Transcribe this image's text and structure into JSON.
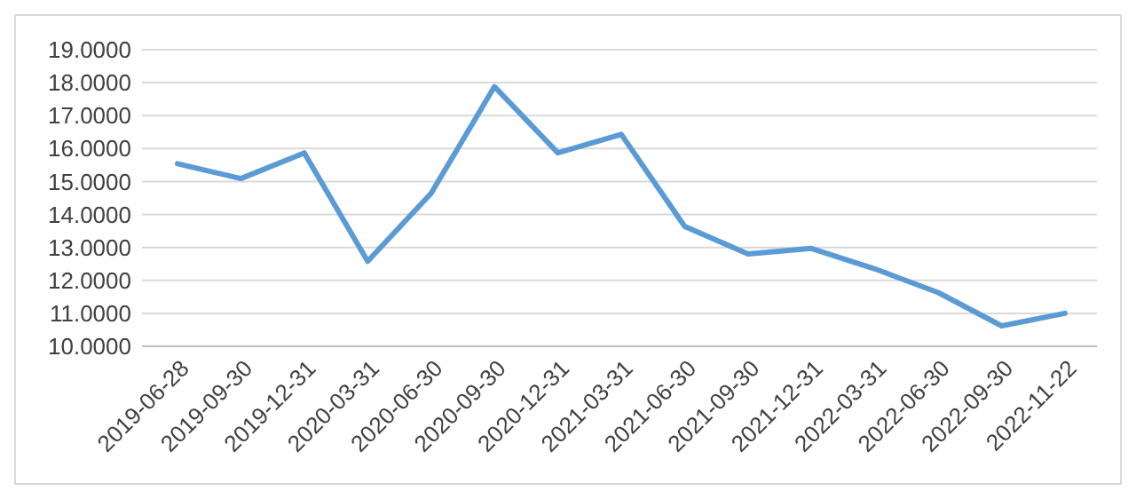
{
  "chart_data": {
    "type": "line",
    "categories": [
      "2019-06-28",
      "2019-09-30",
      "2019-12-31",
      "2020-03-31",
      "2020-06-30",
      "2020-09-30",
      "2020-12-31",
      "2021-03-31",
      "2021-06-30",
      "2021-09-30",
      "2021-12-31",
      "2022-03-31",
      "2022-06-30",
      "2022-09-30",
      "2022-11-22"
    ],
    "series": [
      {
        "color": "#5b9bd5",
        "values": [
          15.54,
          15.09,
          15.87,
          12.58,
          14.64,
          17.88,
          15.87,
          16.43,
          13.64,
          12.8,
          12.97,
          12.35,
          11.63,
          10.62,
          11.0
        ]
      }
    ],
    "ylim": [
      10,
      19
    ],
    "yticks": [
      {
        "value": 10,
        "label": "10.0000"
      },
      {
        "value": 11,
        "label": "11.0000"
      },
      {
        "value": 12,
        "label": "12.0000"
      },
      {
        "value": 13,
        "label": "13.0000"
      },
      {
        "value": 14,
        "label": "14.0000"
      },
      {
        "value": 15,
        "label": "15.0000"
      },
      {
        "value": 16,
        "label": "16.0000"
      },
      {
        "value": 17,
        "label": "17.0000"
      },
      {
        "value": 18,
        "label": "18.0000"
      },
      {
        "value": 19,
        "label": "19.0000"
      }
    ],
    "grid": "y",
    "marker": "none",
    "line_style": "solid"
  }
}
